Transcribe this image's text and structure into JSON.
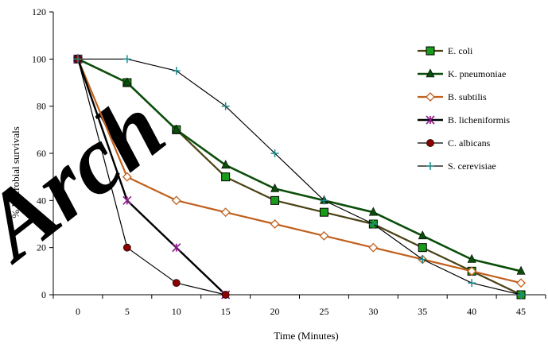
{
  "chart_data": {
    "type": "line",
    "title": "",
    "xlabel": "Time (Minutes)",
    "ylabel": "% Microbial survivals",
    "x": [
      0,
      5,
      10,
      15,
      20,
      25,
      30,
      35,
      40,
      45
    ],
    "xlim": [
      -2.5,
      47.5
    ],
    "ylim": [
      0,
      120
    ],
    "yticks": [
      0,
      20,
      40,
      60,
      80,
      100,
      120
    ],
    "grid": false,
    "legend_position": "right",
    "series": [
      {
        "name": "E. coli",
        "color": "#4a4215",
        "marker": "square",
        "marker_color": "#1a9c1a",
        "points": [
          [
            0,
            100
          ],
          [
            5,
            90
          ],
          [
            10,
            70
          ],
          [
            15,
            50
          ],
          [
            20,
            40
          ],
          [
            25,
            35
          ],
          [
            30,
            30
          ],
          [
            35,
            20
          ],
          [
            40,
            10
          ],
          [
            45,
            0
          ]
        ]
      },
      {
        "name": "K. pneumoniae",
        "color": "#0b4d0b",
        "marker": "triangle",
        "marker_color": "#0b4d0b",
        "points": [
          [
            0,
            100
          ],
          [
            5,
            90
          ],
          [
            10,
            70
          ],
          [
            15,
            55
          ],
          [
            20,
            45
          ],
          [
            25,
            40
          ],
          [
            30,
            35
          ],
          [
            35,
            25
          ],
          [
            40,
            15
          ],
          [
            45,
            10
          ]
        ]
      },
      {
        "name": "B. subtilis",
        "color": "#c0601c",
        "marker": "diamond",
        "marker_color": "#c0601c",
        "points": [
          [
            0,
            100
          ],
          [
            5,
            50
          ],
          [
            10,
            40
          ],
          [
            15,
            35
          ],
          [
            20,
            30
          ],
          [
            25,
            25
          ],
          [
            30,
            20
          ],
          [
            35,
            15
          ],
          [
            40,
            10
          ],
          [
            45,
            5
          ]
        ]
      },
      {
        "name": "B. licheniformis",
        "color": "#000000",
        "marker": "asterisk",
        "marker_color": "#8b1a8b",
        "points": [
          [
            0,
            100
          ],
          [
            5,
            40
          ],
          [
            10,
            20
          ],
          [
            15,
            0
          ]
        ]
      },
      {
        "name": "C. albicans",
        "color": "#000000",
        "marker": "circle",
        "marker_color": "#8b0000",
        "points": [
          [
            0,
            100
          ],
          [
            5,
            20
          ],
          [
            10,
            5
          ],
          [
            15,
            0
          ]
        ]
      },
      {
        "name": "S. cerevisiae",
        "color": "#000000",
        "marker": "plus",
        "marker_color": "#1a8c8c",
        "points": [
          [
            0,
            100
          ],
          [
            5,
            100
          ],
          [
            10,
            95
          ],
          [
            15,
            80
          ],
          [
            20,
            60
          ],
          [
            25,
            40
          ],
          [
            30,
            30
          ],
          [
            35,
            15
          ],
          [
            40,
            5
          ],
          [
            45,
            0
          ]
        ]
      }
    ]
  },
  "watermark": "Arch"
}
